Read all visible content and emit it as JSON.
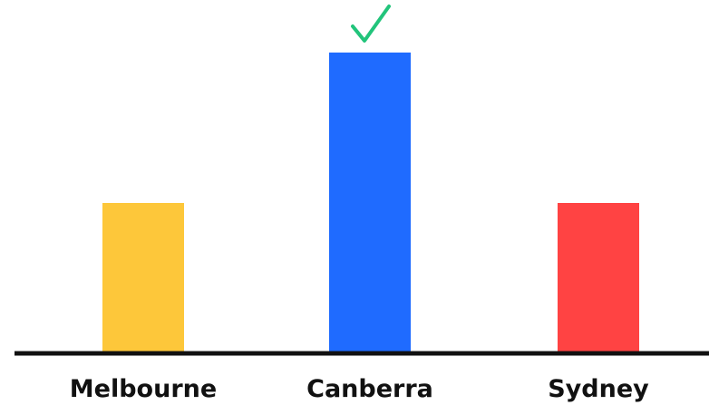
{
  "chart_data": {
    "type": "bar",
    "title": "",
    "xlabel": "",
    "ylabel": "",
    "categories": [
      "Melbourne",
      "Canberra",
      "Sydney"
    ],
    "values": [
      1,
      2,
      1
    ],
    "ylim": [
      0,
      2.2
    ],
    "colors": [
      "#FDC73A",
      "#1F6BFF",
      "#FF4343"
    ],
    "axis_color": "#111111",
    "grid": false,
    "legend": "none",
    "highlight": {
      "category": "Canberra",
      "marker": "check-icon",
      "color": "#22C47B"
    }
  }
}
